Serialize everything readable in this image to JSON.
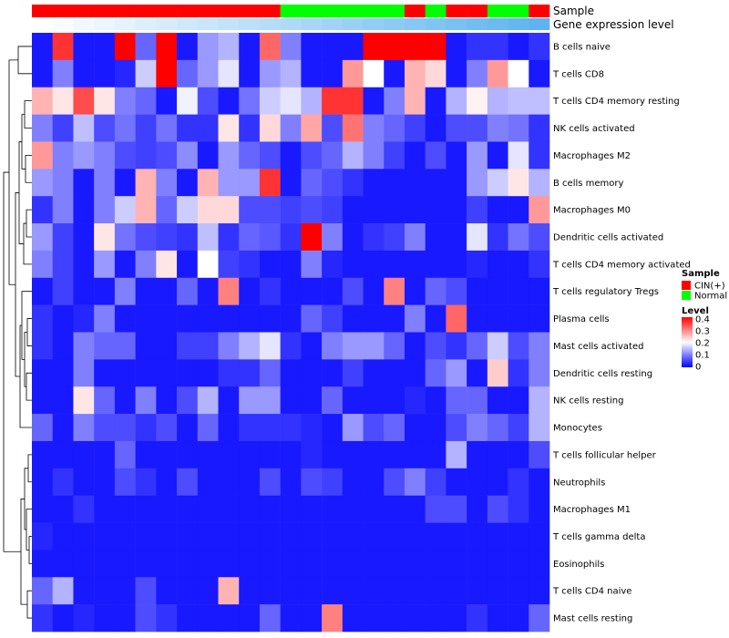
{
  "chart_data": {
    "type": "heatmap",
    "title": "",
    "annotation_tracks": [
      {
        "label": "Sample",
        "type": "categorical",
        "values": [
          "CIN(+)",
          "CIN(+)",
          "CIN(+)",
          "CIN(+)",
          "CIN(+)",
          "CIN(+)",
          "CIN(+)",
          "CIN(+)",
          "CIN(+)",
          "CIN(+)",
          "CIN(+)",
          "CIN(+)",
          "Normal",
          "Normal",
          "Normal",
          "Normal",
          "Normal",
          "Normal",
          "CIN(+)",
          "Normal",
          "CIN(+)",
          "CIN(+)",
          "Normal",
          "Normal",
          "CIN(+)"
        ]
      },
      {
        "label": "Gene expression level",
        "type": "gradient"
      }
    ],
    "rows": [
      "B cells naive",
      "T cells CD8",
      "T cells CD4 memory resting",
      "NK cells activated",
      "Macrophages M2",
      "B cells memory",
      "Macrophages M0",
      "Dendritic cells activated",
      "T cells CD4 memory activated",
      "T cells regulatory  Tregs",
      "Plasma cells",
      "Mast cells activated",
      "Dendritic cells resting",
      "NK cells resting",
      "Monocytes",
      "T cells follicular helper",
      "Neutrophils",
      "Macrophages M1",
      "T cells gamma delta",
      "Eosinophils",
      "T cells CD4 naive",
      "Mast cells resting"
    ],
    "matrix": [
      [
        0.02,
        0.36,
        0.02,
        0.02,
        0.4,
        0.08,
        0.4,
        0.02,
        0.12,
        0.14,
        0.02,
        0.32,
        0.1,
        0.02,
        0.02,
        0.02,
        0.4,
        0.4,
        0.4,
        0.4,
        0.02,
        0.04,
        0.04,
        0.02,
        0.04
      ],
      [
        0.02,
        0.1,
        0.02,
        0.02,
        0.03,
        0.16,
        0.4,
        0.08,
        0.12,
        0.18,
        0.02,
        0.12,
        0.14,
        0.02,
        0.02,
        0.28,
        0.2,
        0.02,
        0.26,
        0.23,
        0.02,
        0.1,
        0.28,
        0.2,
        0.02
      ],
      [
        0.26,
        0.22,
        0.34,
        0.22,
        0.1,
        0.08,
        0.02,
        0.19,
        0.06,
        0.02,
        0.09,
        0.16,
        0.18,
        0.14,
        0.36,
        0.36,
        0.02,
        0.1,
        0.26,
        0.02,
        0.14,
        0.21,
        0.14,
        0.15,
        0.15
      ],
      [
        0.1,
        0.05,
        0.15,
        0.06,
        0.09,
        0.05,
        0.09,
        0.04,
        0.04,
        0.22,
        0.04,
        0.23,
        0.1,
        0.27,
        0.06,
        0.31,
        0.1,
        0.08,
        0.05,
        0.02,
        0.06,
        0.06,
        0.1,
        0.09,
        0.04
      ],
      [
        0.28,
        0.1,
        0.12,
        0.1,
        0.06,
        0.05,
        0.06,
        0.11,
        0.02,
        0.12,
        0.08,
        0.06,
        0.02,
        0.06,
        0.08,
        0.14,
        0.1,
        0.05,
        0.02,
        0.06,
        0.02,
        0.12,
        0.02,
        0.18,
        0.04
      ],
      [
        0.12,
        0.1,
        0.02,
        0.1,
        0.02,
        0.26,
        0.1,
        0.02,
        0.26,
        0.12,
        0.12,
        0.36,
        0.02,
        0.08,
        0.06,
        0.04,
        0.02,
        0.02,
        0.02,
        0.02,
        0.02,
        0.12,
        0.16,
        0.22,
        0.14
      ],
      [
        0.04,
        0.1,
        0.02,
        0.1,
        0.16,
        0.26,
        0.08,
        0.16,
        0.23,
        0.23,
        0.06,
        0.06,
        0.05,
        0.06,
        0.05,
        0.02,
        0.02,
        0.02,
        0.02,
        0.02,
        0.02,
        0.05,
        0.02,
        0.02,
        0.28
      ],
      [
        0.12,
        0.05,
        0.02,
        0.22,
        0.09,
        0.06,
        0.05,
        0.04,
        0.15,
        0.04,
        0.08,
        0.07,
        0.04,
        0.4,
        0.1,
        0.02,
        0.04,
        0.05,
        0.1,
        0.02,
        0.02,
        0.18,
        0.04,
        0.09,
        0.06
      ],
      [
        0.1,
        0.05,
        0.02,
        0.12,
        0.02,
        0.1,
        0.22,
        0.02,
        0.2,
        0.05,
        0.04,
        0.02,
        0.02,
        0.1,
        0.03,
        0.02,
        0.02,
        0.02,
        0.02,
        0.02,
        0.02,
        0.03,
        0.02,
        0.02,
        0.04
      ],
      [
        0.02,
        0.05,
        0.02,
        0.02,
        0.1,
        0.02,
        0.02,
        0.08,
        0.02,
        0.3,
        0.02,
        0.04,
        0.02,
        0.02,
        0.02,
        0.06,
        0.02,
        0.3,
        0.02,
        0.08,
        0.06,
        0.02,
        0.02,
        0.02,
        0.02
      ],
      [
        0.04,
        0.02,
        0.03,
        0.1,
        0.02,
        0.02,
        0.02,
        0.02,
        0.02,
        0.02,
        0.02,
        0.02,
        0.02,
        0.08,
        0.05,
        0.02,
        0.02,
        0.02,
        0.1,
        0.02,
        0.32,
        0.02,
        0.02,
        0.02,
        0.02
      ],
      [
        0.04,
        0.02,
        0.1,
        0.08,
        0.08,
        0.02,
        0.02,
        0.05,
        0.05,
        0.1,
        0.14,
        0.18,
        0.04,
        0.02,
        0.1,
        0.12,
        0.12,
        0.08,
        0.02,
        0.06,
        0.04,
        0.08,
        0.16,
        0.06,
        0.1
      ],
      [
        0.02,
        0.02,
        0.1,
        0.02,
        0.02,
        0.02,
        0.02,
        0.02,
        0.02,
        0.04,
        0.04,
        0.08,
        0.02,
        0.02,
        0.02,
        0.05,
        0.02,
        0.02,
        0.02,
        0.08,
        0.12,
        0.02,
        0.24,
        0.04,
        0.1
      ],
      [
        0.02,
        0.02,
        0.22,
        0.08,
        0.02,
        0.1,
        0.02,
        0.06,
        0.14,
        0.02,
        0.12,
        0.12,
        0.02,
        0.02,
        0.08,
        0.02,
        0.02,
        0.02,
        0.03,
        0.02,
        0.08,
        0.08,
        0.02,
        0.02,
        0.14
      ],
      [
        0.08,
        0.02,
        0.1,
        0.06,
        0.06,
        0.04,
        0.06,
        0.02,
        0.08,
        0.02,
        0.04,
        0.04,
        0.04,
        0.03,
        0.02,
        0.12,
        0.06,
        0.08,
        0.02,
        0.02,
        0.06,
        0.1,
        0.08,
        0.05,
        0.14
      ],
      [
        0.02,
        0.02,
        0.02,
        0.02,
        0.08,
        0.02,
        0.02,
        0.02,
        0.02,
        0.02,
        0.02,
        0.02,
        0.02,
        0.03,
        0.02,
        0.02,
        0.02,
        0.02,
        0.02,
        0.02,
        0.14,
        0.02,
        0.02,
        0.02,
        0.06
      ],
      [
        0.02,
        0.04,
        0.02,
        0.02,
        0.06,
        0.04,
        0.02,
        0.06,
        0.02,
        0.02,
        0.02,
        0.06,
        0.02,
        0.06,
        0.05,
        0.02,
        0.02,
        0.06,
        0.1,
        0.05,
        0.02,
        0.02,
        0.02,
        0.04,
        0.02
      ],
      [
        0.02,
        0.02,
        0.04,
        0.02,
        0.02,
        0.02,
        0.02,
        0.02,
        0.02,
        0.02,
        0.02,
        0.02,
        0.02,
        0.02,
        0.02,
        0.02,
        0.02,
        0.02,
        0.02,
        0.06,
        0.06,
        0.02,
        0.06,
        0.04,
        0.02
      ],
      [
        0.03,
        0.02,
        0.02,
        0.02,
        0.02,
        0.02,
        0.02,
        0.02,
        0.02,
        0.02,
        0.02,
        0.02,
        0.02,
        0.02,
        0.02,
        0.02,
        0.02,
        0.02,
        0.02,
        0.02,
        0.02,
        0.02,
        0.02,
        0.02,
        0.02
      ],
      [
        0.02,
        0.02,
        0.02,
        0.02,
        0.02,
        0.02,
        0.02,
        0.02,
        0.02,
        0.02,
        0.02,
        0.02,
        0.02,
        0.02,
        0.02,
        0.02,
        0.02,
        0.02,
        0.02,
        0.02,
        0.02,
        0.02,
        0.02,
        0.02,
        0.02
      ],
      [
        0.08,
        0.14,
        0.02,
        0.02,
        0.02,
        0.06,
        0.02,
        0.02,
        0.02,
        0.26,
        0.02,
        0.02,
        0.02,
        0.02,
        0.02,
        0.02,
        0.02,
        0.02,
        0.02,
        0.02,
        0.02,
        0.02,
        0.02,
        0.02,
        0.02
      ],
      [
        0.04,
        0.02,
        0.03,
        0.02,
        0.02,
        0.06,
        0.04,
        0.02,
        0.02,
        0.02,
        0.02,
        0.08,
        0.02,
        0.02,
        0.3,
        0.02,
        0.02,
        0.02,
        0.02,
        0.02,
        0.02,
        0.04,
        0.02,
        0.02,
        0.08
      ]
    ],
    "color_scale": {
      "min": 0,
      "mid": 0.2,
      "max": 0.4,
      "colors": [
        "#0000ff",
        "#ffffff",
        "#ff0000"
      ]
    },
    "legend": {
      "sample_title": "Sample",
      "sample_entries": [
        {
          "label": "CIN(+)",
          "color": "#ff0000"
        },
        {
          "label": "Normal",
          "color": "#00ff00"
        }
      ],
      "level_title": "Level",
      "level_ticks": [
        "0.4",
        "0.3",
        "0.2",
        "0.1",
        "0"
      ],
      "placement": "right"
    },
    "gradient_colors": {
      "start": "#ffffff",
      "end": "#5fb4ef"
    },
    "dendrogram": "row clustering tree on left"
  }
}
